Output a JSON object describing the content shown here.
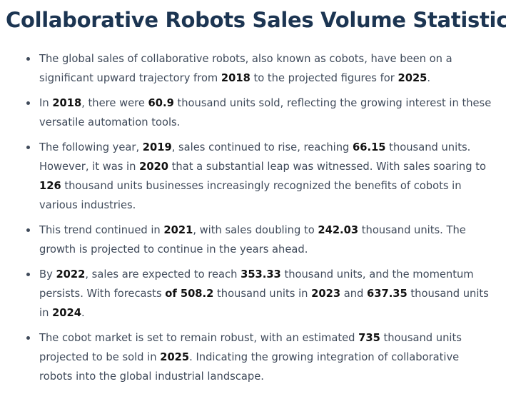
{
  "title": "Collaborative Robots Sales Volume Statistics",
  "items": [
    {
      "lines": [
        [
          "The global sales of collaborative robots, also known as cobots, have been on a"
        ],
        [
          "significant upward trajectory from ",
          {
            "b": "2018"
          },
          " to the projected figures for ",
          {
            "b": "2025"
          },
          "."
        ]
      ]
    },
    {
      "lines": [
        [
          "In ",
          {
            "b": "2018"
          },
          ", there were ",
          {
            "b": "60.9"
          },
          " thousand units sold, reflecting the growing interest in these"
        ],
        [
          "versatile automation tools."
        ]
      ]
    },
    {
      "lines": [
        [
          "The following year, ",
          {
            "b": "2019"
          },
          ", sales continued to rise, reaching ",
          {
            "b": "66.15"
          },
          " thousand units."
        ],
        [
          "However, it was in ",
          {
            "b": "2020"
          },
          " that a substantial leap was witnessed. With sales soaring to"
        ],
        [
          {
            "b": "126"
          },
          " thousand units businesses increasingly recognized the benefits of cobots in"
        ],
        [
          "various industries."
        ]
      ]
    },
    {
      "lines": [
        [
          "This trend continued in ",
          {
            "b": "2021"
          },
          ", with sales doubling to ",
          {
            "b": "242.03"
          },
          " thousand units. The"
        ],
        [
          "growth is projected to continue in the years ahead."
        ]
      ]
    },
    {
      "lines": [
        [
          "By ",
          {
            "b": "2022"
          },
          ", sales are expected to reach ",
          {
            "b": "353.33"
          },
          " thousand units, and the momentum"
        ],
        [
          "persists. With forecasts ",
          {
            "b": "of 508.2"
          },
          " thousand units in ",
          {
            "b": "2023"
          },
          " and ",
          {
            "b": "637.35"
          },
          " thousand units"
        ],
        [
          "in ",
          {
            "b": "2024"
          },
          "."
        ]
      ]
    },
    {
      "lines": [
        [
          "The cobot market is set to remain robust, with an estimated ",
          {
            "b": "735"
          },
          " thousand units"
        ],
        [
          "projected to be sold in ",
          {
            "b": "2025"
          },
          ". Indicating the growing integration of collaborative"
        ],
        [
          "robots into the global industrial landscape."
        ]
      ]
    }
  ]
}
